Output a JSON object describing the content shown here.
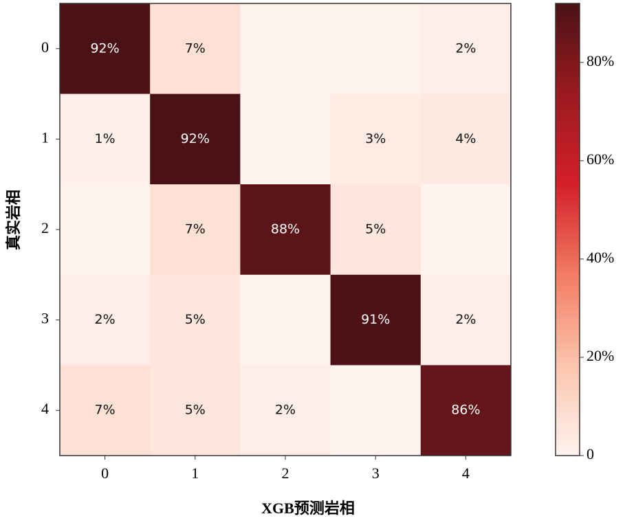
{
  "chart_data": {
    "type": "heatmap",
    "x_label": "XGB预测岩相",
    "y_label": "真实岩相",
    "categories": [
      "0",
      "1",
      "2",
      "3",
      "4"
    ],
    "y_categories": [
      "0",
      "1",
      "2",
      "3",
      "4"
    ],
    "values": [
      [
        92,
        7,
        0,
        0,
        2
      ],
      [
        1,
        92,
        0,
        3,
        4
      ],
      [
        0,
        7,
        88,
        5,
        0
      ],
      [
        2,
        5,
        0,
        91,
        2
      ],
      [
        7,
        5,
        2,
        0,
        86
      ]
    ],
    "value_labels": [
      [
        "92%",
        "7%",
        null,
        null,
        "2%"
      ],
      [
        "1%",
        "92%",
        null,
        "3%",
        "4%"
      ],
      [
        null,
        "7%",
        "88%",
        "5%",
        null
      ],
      [
        "2%",
        "5%",
        null,
        "91%",
        "2%"
      ],
      [
        "7%",
        "5%",
        "2%",
        null,
        "86%"
      ]
    ],
    "zlim": [
      0,
      92
    ],
    "zticks": [
      0,
      {
        "value": 20,
        "label": "20%"
      },
      {
        "value": 40,
        "label": "40%"
      },
      {
        "value": 60,
        "label": "60%"
      },
      {
        "value": 80,
        "label": "80%"
      }
    ],
    "colorscale": [
      "#fff3ee",
      "#fbc4ad",
      "#f27c62",
      "#d41f2a",
      "#9a1a1f",
      "#4a1216"
    ]
  }
}
